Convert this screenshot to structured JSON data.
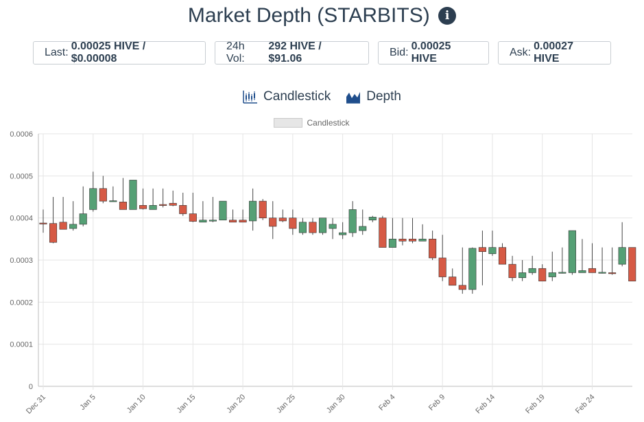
{
  "header": {
    "title": "Market Depth (STARBITS)",
    "info_icon": "info-icon"
  },
  "stats": {
    "last": {
      "label": "Last:",
      "value": "0.00025 HIVE / $0.00008"
    },
    "vol": {
      "label": "24h Vol:",
      "value": "292 HIVE / $91.06"
    },
    "bid": {
      "label": "Bid:",
      "value": "0.00025 HIVE"
    },
    "ask": {
      "label": "Ask:",
      "value": "0.00027 HIVE"
    }
  },
  "toggles": {
    "candlestick": {
      "label": "Candlestick",
      "icon": "candlestick-icon"
    },
    "depth": {
      "label": "Depth",
      "icon": "depth-chart-icon"
    }
  },
  "colors": {
    "up": "#55a075",
    "down": "#d65a45",
    "wick": "#444444",
    "grid": "#e5e5e5",
    "axis": "#bbbbbb",
    "accent": "#1f4e8c"
  },
  "chart_data": {
    "type": "candlestick",
    "legend": {
      "label": "Candlestick",
      "position": "top-center"
    },
    "grid": true,
    "ylim": [
      0,
      0.0006
    ],
    "yticks": [
      "0",
      "0.0001",
      "0.0002",
      "0.0003",
      "0.0004",
      "0.0005",
      "0.0006"
    ],
    "xticks": [
      {
        "i": 0,
        "label": "Dec 31"
      },
      {
        "i": 5,
        "label": "Jan 5"
      },
      {
        "i": 10,
        "label": "Jan 10"
      },
      {
        "i": 15,
        "label": "Jan 15"
      },
      {
        "i": 20,
        "label": "Jan 20"
      },
      {
        "i": 25,
        "label": "Jan 25"
      },
      {
        "i": 30,
        "label": "Jan 30"
      },
      {
        "i": 35,
        "label": "Feb 4"
      },
      {
        "i": 40,
        "label": "Feb 9"
      },
      {
        "i": 45,
        "label": "Feb 14"
      },
      {
        "i": 50,
        "label": "Feb 19"
      },
      {
        "i": 55,
        "label": "Feb 24"
      }
    ],
    "candles": [
      {
        "d": "Dec 31",
        "o": 0.000388,
        "h": 0.00042,
        "l": 0.000365,
        "c": 0.000386
      },
      {
        "d": "Jan 1",
        "o": 0.000387,
        "h": 0.00045,
        "l": 0.00034,
        "c": 0.000342
      },
      {
        "d": "Jan 2",
        "o": 0.00039,
        "h": 0.00045,
        "l": 0.000375,
        "c": 0.000373
      },
      {
        "d": "Jan 3",
        "o": 0.000375,
        "h": 0.00044,
        "l": 0.00037,
        "c": 0.000385
      },
      {
        "d": "Jan 4",
        "o": 0.000385,
        "h": 0.000475,
        "l": 0.00038,
        "c": 0.00041
      },
      {
        "d": "Jan 5",
        "o": 0.00042,
        "h": 0.00051,
        "l": 0.000415,
        "c": 0.00047
      },
      {
        "d": "Jan 6",
        "o": 0.00047,
        "h": 0.0005,
        "l": 0.000435,
        "c": 0.00044
      },
      {
        "d": "Jan 7",
        "o": 0.00044,
        "h": 0.000475,
        "l": 0.00044,
        "c": 0.000441
      },
      {
        "d": "Jan 8",
        "o": 0.000438,
        "h": 0.000495,
        "l": 0.00042,
        "c": 0.00042
      },
      {
        "d": "Jan 9",
        "o": 0.00042,
        "h": 0.00049,
        "l": 0.00042,
        "c": 0.00049
      },
      {
        "d": "Jan 10",
        "o": 0.00043,
        "h": 0.00047,
        "l": 0.00042,
        "c": 0.000422
      },
      {
        "d": "Jan 11",
        "o": 0.00042,
        "h": 0.00047,
        "l": 0.00042,
        "c": 0.00043
      },
      {
        "d": "Jan 12",
        "o": 0.000432,
        "h": 0.00047,
        "l": 0.000425,
        "c": 0.00043
      },
      {
        "d": "Jan 13",
        "o": 0.000435,
        "h": 0.000465,
        "l": 0.000428,
        "c": 0.00043
      },
      {
        "d": "Jan 14",
        "o": 0.00043,
        "h": 0.00046,
        "l": 0.000405,
        "c": 0.00041
      },
      {
        "d": "Jan 15",
        "o": 0.00041,
        "h": 0.00046,
        "l": 0.00039,
        "c": 0.000392
      },
      {
        "d": "Jan 16",
        "o": 0.00039,
        "h": 0.00044,
        "l": 0.00039,
        "c": 0.000395
      },
      {
        "d": "Jan 17",
        "o": 0.000393,
        "h": 0.00045,
        "l": 0.00039,
        "c": 0.000395
      },
      {
        "d": "Jan 18",
        "o": 0.000395,
        "h": 0.00044,
        "l": 0.000395,
        "c": 0.00044
      },
      {
        "d": "Jan 19",
        "o": 0.000395,
        "h": 0.00042,
        "l": 0.00039,
        "c": 0.00039
      },
      {
        "d": "Jan 20",
        "o": 0.000395,
        "h": 0.00042,
        "l": 0.00039,
        "c": 0.00039
      },
      {
        "d": "Jan 21",
        "o": 0.000393,
        "h": 0.00047,
        "l": 0.00037,
        "c": 0.00044
      },
      {
        "d": "Jan 22",
        "o": 0.00044,
        "h": 0.000445,
        "l": 0.000395,
        "c": 0.0004
      },
      {
        "d": "Jan 23",
        "o": 0.0004,
        "h": 0.00044,
        "l": 0.00035,
        "c": 0.00038
      },
      {
        "d": "Jan 24",
        "o": 0.0004,
        "h": 0.00042,
        "l": 0.00039,
        "c": 0.000393
      },
      {
        "d": "Jan 25",
        "o": 0.0004,
        "h": 0.00042,
        "l": 0.00036,
        "c": 0.000375
      },
      {
        "d": "Jan 26",
        "o": 0.000365,
        "h": 0.0004,
        "l": 0.00036,
        "c": 0.00039
      },
      {
        "d": "Jan 27",
        "o": 0.00039,
        "h": 0.0004,
        "l": 0.00036,
        "c": 0.000365
      },
      {
        "d": "Jan 28",
        "o": 0.000365,
        "h": 0.0004,
        "l": 0.00036,
        "c": 0.0004
      },
      {
        "d": "Jan 29",
        "o": 0.000375,
        "h": 0.0004,
        "l": 0.00035,
        "c": 0.000385
      },
      {
        "d": "Jan 30",
        "o": 0.00036,
        "h": 0.00039,
        "l": 0.00035,
        "c": 0.000365
      },
      {
        "d": "Jan 31",
        "o": 0.000365,
        "h": 0.00044,
        "l": 0.000355,
        "c": 0.00042
      },
      {
        "d": "Feb 1",
        "o": 0.00037,
        "h": 0.00042,
        "l": 0.00036,
        "c": 0.00038
      },
      {
        "d": "Feb 2",
        "o": 0.000395,
        "h": 0.000405,
        "l": 0.00039,
        "c": 0.000402
      },
      {
        "d": "Feb 3",
        "o": 0.0004,
        "h": 0.000405,
        "l": 0.00033,
        "c": 0.00033
      },
      {
        "d": "Feb 4",
        "o": 0.00033,
        "h": 0.0004,
        "l": 0.00033,
        "c": 0.00035
      },
      {
        "d": "Feb 5",
        "o": 0.00035,
        "h": 0.0004,
        "l": 0.000335,
        "c": 0.000345
      },
      {
        "d": "Feb 6",
        "o": 0.00035,
        "h": 0.0004,
        "l": 0.00034,
        "c": 0.000345
      },
      {
        "d": "Feb 7",
        "o": 0.000345,
        "h": 0.000385,
        "l": 0.000345,
        "c": 0.00035
      },
      {
        "d": "Feb 8",
        "o": 0.00035,
        "h": 0.00037,
        "l": 0.0003,
        "c": 0.000305
      },
      {
        "d": "Feb 9",
        "o": 0.000305,
        "h": 0.00036,
        "l": 0.00025,
        "c": 0.00026
      },
      {
        "d": "Feb 10",
        "o": 0.00026,
        "h": 0.00028,
        "l": 0.00024,
        "c": 0.00024
      },
      {
        "d": "Feb 11",
        "o": 0.00024,
        "h": 0.00033,
        "l": 0.00022,
        "c": 0.00023
      },
      {
        "d": "Feb 12",
        "o": 0.00023,
        "h": 0.00033,
        "l": 0.00022,
        "c": 0.000328
      },
      {
        "d": "Feb 13",
        "o": 0.00033,
        "h": 0.00037,
        "l": 0.00024,
        "c": 0.00032
      },
      {
        "d": "Feb 14",
        "o": 0.000315,
        "h": 0.00037,
        "l": 0.00031,
        "c": 0.00033
      },
      {
        "d": "Feb 15",
        "o": 0.00033,
        "h": 0.00034,
        "l": 0.00029,
        "c": 0.00029
      },
      {
        "d": "Feb 16",
        "o": 0.00029,
        "h": 0.00031,
        "l": 0.00025,
        "c": 0.000258
      },
      {
        "d": "Feb 17",
        "o": 0.000258,
        "h": 0.0003,
        "l": 0.00025,
        "c": 0.00027
      },
      {
        "d": "Feb 18",
        "o": 0.00027,
        "h": 0.00031,
        "l": 0.000265,
        "c": 0.00028
      },
      {
        "d": "Feb 19",
        "o": 0.00028,
        "h": 0.00029,
        "l": 0.00025,
        "c": 0.00025
      },
      {
        "d": "Feb 20",
        "o": 0.00026,
        "h": 0.00032,
        "l": 0.00025,
        "c": 0.00027
      },
      {
        "d": "Feb 21",
        "o": 0.00027,
        "h": 0.00033,
        "l": 0.000268,
        "c": 0.000271
      },
      {
        "d": "Feb 22",
        "o": 0.00027,
        "h": 0.00037,
        "l": 0.000265,
        "c": 0.00037
      },
      {
        "d": "Feb 23",
        "o": 0.00027,
        "h": 0.00035,
        "l": 0.00027,
        "c": 0.000275
      },
      {
        "d": "Feb 24",
        "o": 0.00028,
        "h": 0.00034,
        "l": 0.00027,
        "c": 0.00027
      },
      {
        "d": "Feb 25",
        "o": 0.00027,
        "h": 0.00033,
        "l": 0.000268,
        "c": 0.000271
      },
      {
        "d": "Feb 26",
        "o": 0.00027,
        "h": 0.00033,
        "l": 0.000265,
        "c": 0.000268
      },
      {
        "d": "Feb 27",
        "o": 0.00029,
        "h": 0.00039,
        "l": 0.000285,
        "c": 0.00033
      },
      {
        "d": "Feb 28",
        "o": 0.00033,
        "h": 0.00033,
        "l": 0.00025,
        "c": 0.00025
      }
    ]
  }
}
